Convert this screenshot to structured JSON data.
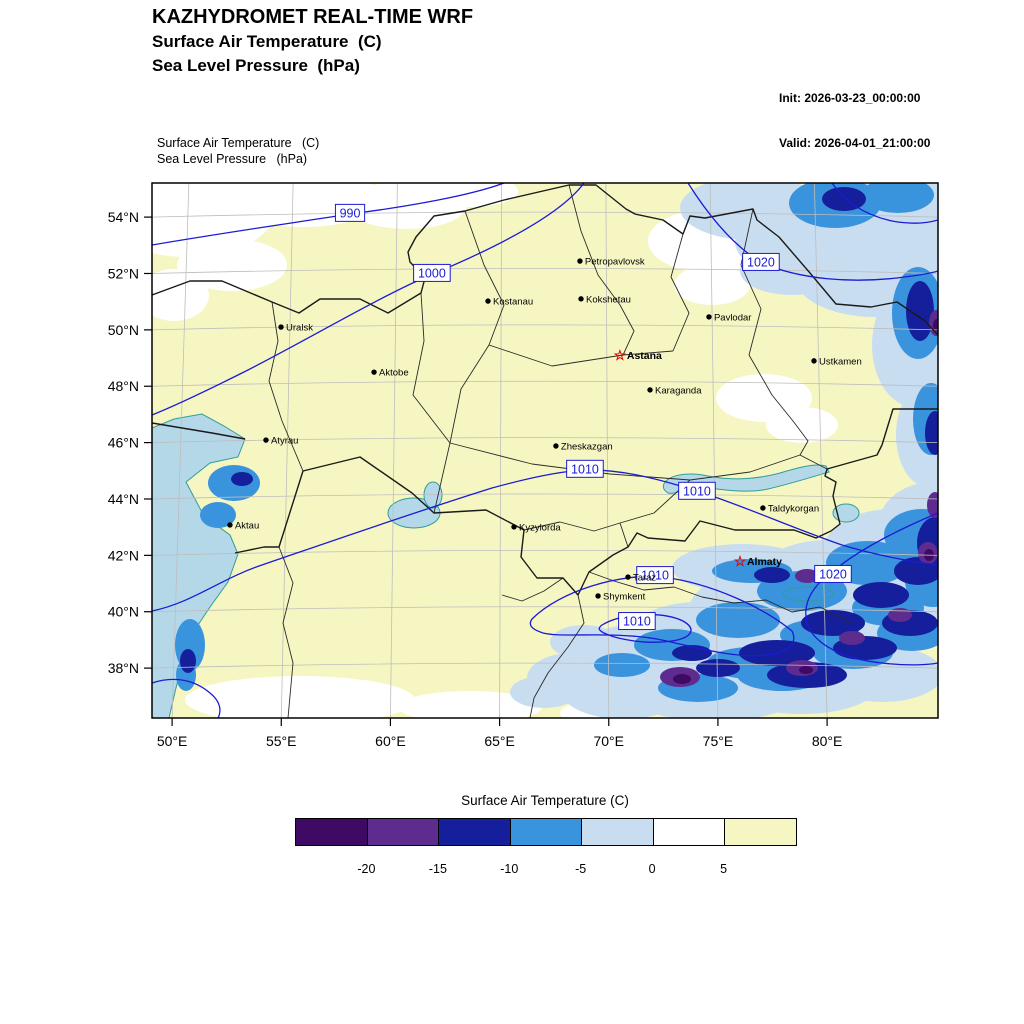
{
  "header": {
    "title": "KAZHYDROMET REAL-TIME WRF",
    "subtitle_temp": "Surface Air Temperature  (C)",
    "subtitle_pres": "Sea Level Pressure  (hPa)",
    "init_label": "Init: 2026-03-23_00:00:00",
    "valid_label": "Valid: 2026-04-01_21:00:00"
  },
  "plot_header": {
    "line1": "Surface Air Temperature   (C)",
    "line2": "Sea Level Pressure   (hPa)"
  },
  "chart_data": {
    "type": "heatmap",
    "title": "KAZHYDROMET REAL-TIME WRF",
    "fields": [
      "Surface Air Temperature (C)",
      "Sea Level Pressure (hPa)"
    ],
    "init_time": "2026-03-23_00:00:00",
    "valid_time": "2026-04-01_21:00:00",
    "grid": true,
    "extent": {
      "lon_min": 49.08,
      "lon_max": 85.08,
      "lat_min": 36.23,
      "lat_max": 55.21
    },
    "x_ticks": [
      {
        "label": "50°E",
        "lon": 50
      },
      {
        "label": "55°E",
        "lon": 55
      },
      {
        "label": "60°E",
        "lon": 60
      },
      {
        "label": "65°E",
        "lon": 65
      },
      {
        "label": "70°E",
        "lon": 70
      },
      {
        "label": "75°E",
        "lon": 75
      },
      {
        "label": "80°E",
        "lon": 80
      }
    ],
    "y_ticks": [
      {
        "label": "54°N",
        "lat": 54
      },
      {
        "label": "52°N",
        "lat": 52
      },
      {
        "label": "50°N",
        "lat": 50
      },
      {
        "label": "48°N",
        "lat": 48
      },
      {
        "label": "46°N",
        "lat": 46
      },
      {
        "label": "44°N",
        "lat": 44
      },
      {
        "label": "42°N",
        "lat": 42
      },
      {
        "label": "40°N",
        "lat": 40
      },
      {
        "label": "38°N",
        "lat": 38
      }
    ],
    "colorbar": {
      "title": "Surface Air Temperature (C)",
      "tick_labels": [
        "-20",
        "-15",
        "-10",
        "-5",
        "0",
        "5"
      ],
      "colors": [
        "#3f0a63",
        "#5e2b8f",
        "#151f9c",
        "#3a93dd",
        "#c9ddf1",
        "#ffffff",
        "#f6f6c3"
      ]
    },
    "pressure_labels": [
      {
        "text": "990",
        "lon": 58.15,
        "lat": 54.15
      },
      {
        "text": "1000",
        "lon": 61.9,
        "lat": 52.02
      },
      {
        "text": "1020",
        "lon": 76.97,
        "lat": 52.41
      },
      {
        "text": "1010",
        "lon": 68.91,
        "lat": 45.07
      },
      {
        "text": "1010",
        "lon": 74.04,
        "lat": 44.29
      },
      {
        "text": "1010",
        "lon": 72.12,
        "lat": 41.3
      },
      {
        "text": "1010",
        "lon": 71.29,
        "lat": 39.67
      },
      {
        "text": "1020",
        "lon": 80.27,
        "lat": 41.34
      }
    ],
    "cities": [
      {
        "name": "Petropavlovsk",
        "lon": 68.68,
        "lat": 52.44,
        "capital": false
      },
      {
        "name": "Kostanau",
        "lon": 64.47,
        "lat": 51.02,
        "capital": false
      },
      {
        "name": "Kokshetau",
        "lon": 68.73,
        "lat": 51.1,
        "capital": false
      },
      {
        "name": "Pavlodar",
        "lon": 74.59,
        "lat": 50.46,
        "capital": false
      },
      {
        "name": "Uralsk",
        "lon": 54.99,
        "lat": 50.1,
        "capital": false
      },
      {
        "name": "Astana",
        "lon": 70.51,
        "lat": 49.11,
        "capital": true
      },
      {
        "name": "Ustkamen",
        "lon": 79.4,
        "lat": 48.9,
        "capital": false
      },
      {
        "name": "Aktobe",
        "lon": 59.25,
        "lat": 48.5,
        "capital": false
      },
      {
        "name": "Karaganda",
        "lon": 71.89,
        "lat": 47.87,
        "capital": false
      },
      {
        "name": "Atyrau",
        "lon": 54.3,
        "lat": 46.09,
        "capital": false
      },
      {
        "name": "Zheskazgan",
        "lon": 67.58,
        "lat": 45.88,
        "capital": false
      },
      {
        "name": "Aktau",
        "lon": 52.65,
        "lat": 43.08,
        "capital": false
      },
      {
        "name": "Kyzylorda",
        "lon": 65.66,
        "lat": 43.01,
        "capital": false
      },
      {
        "name": "Taldykorgan",
        "lon": 77.06,
        "lat": 43.68,
        "capital": false
      },
      {
        "name": "Almaty",
        "lon": 76.01,
        "lat": 41.8,
        "capital": true
      },
      {
        "name": "Taraz",
        "lon": 70.88,
        "lat": 41.23,
        "capital": false
      },
      {
        "name": "Shymkent",
        "lon": 69.51,
        "lat": 40.56,
        "capital": false
      }
    ],
    "map_colors": {
      "sea": "#b5d8e8",
      "coast": "#2f9e96",
      "contour": "#1b1bd4",
      "grid": "#bdbdbd",
      "border": "#1a1a1a",
      "capital_star": "#e00000"
    }
  }
}
